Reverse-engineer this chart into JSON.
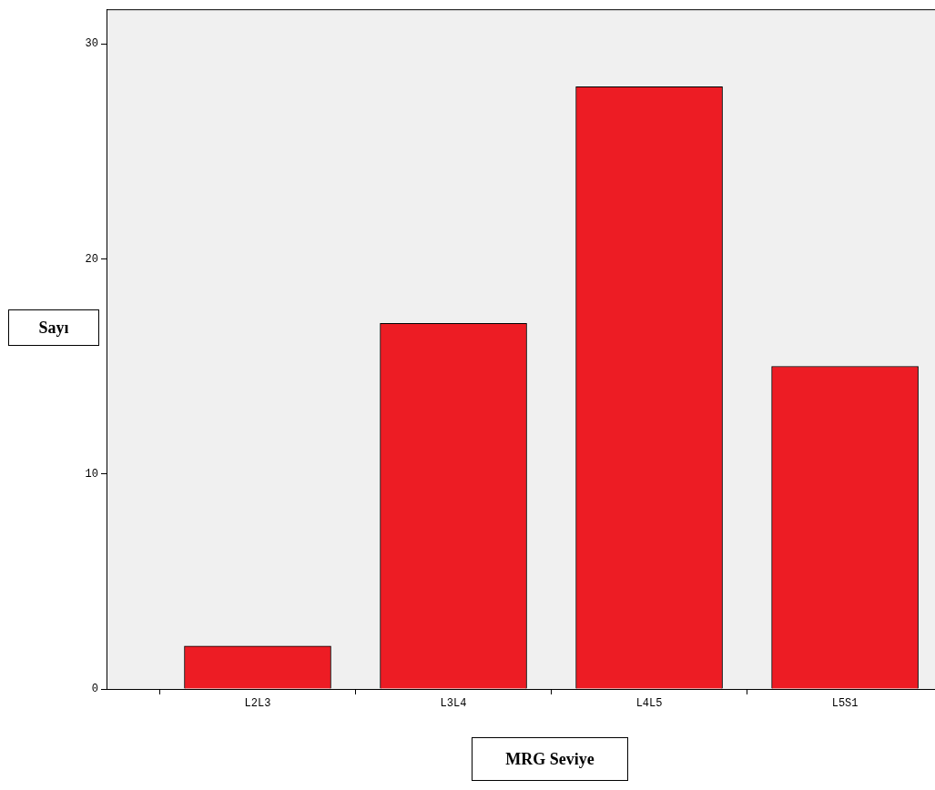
{
  "chart_data": {
    "type": "bar",
    "xlabel": "MRG Seviye",
    "ylabel": "Sayı",
    "categories": [
      "L2L3",
      "L3L4",
      "L4L5",
      "L5S1"
    ],
    "values": [
      2,
      17,
      28,
      15
    ],
    "color": "#ed1c24",
    "ylim": [
      0,
      31.6
    ],
    "yticks": [
      0,
      10,
      20,
      30
    ],
    "grid": false,
    "legend": false
  }
}
